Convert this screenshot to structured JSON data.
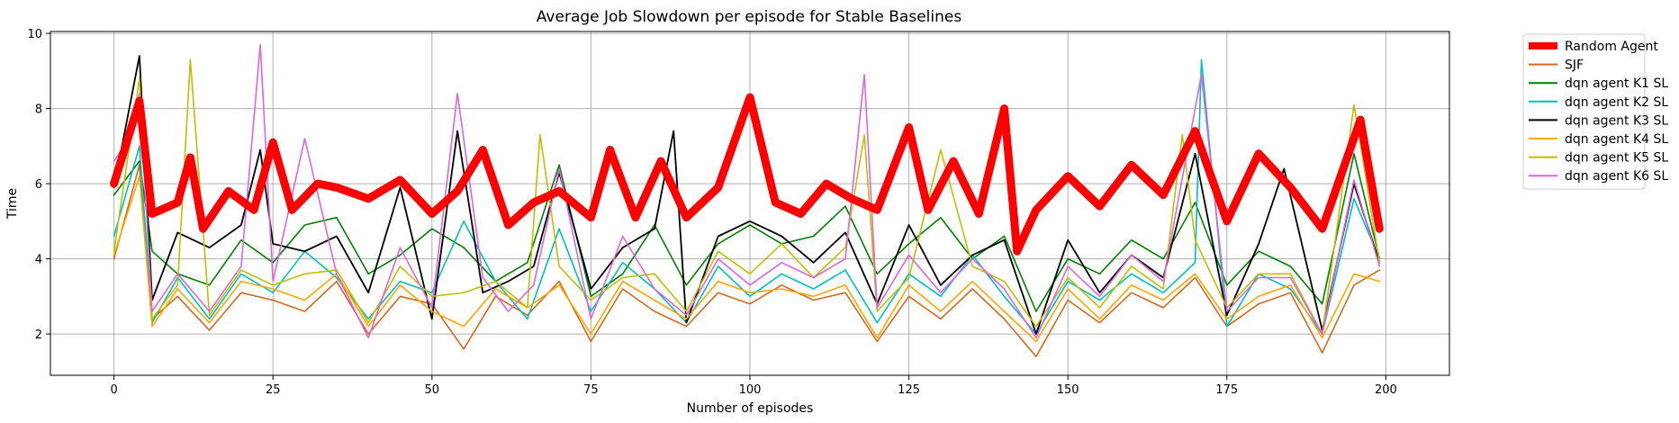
{
  "chart_data": {
    "type": "line",
    "title": "Average Job Slowdown per episode for Stable Baselines",
    "xlabel": "Number of episodes",
    "ylabel": "Time",
    "xlim": [
      -10,
      210
    ],
    "ylim": [
      0.9,
      10.05
    ],
    "xticks": [
      0,
      25,
      50,
      75,
      100,
      125,
      150,
      175,
      200
    ],
    "yticks": [
      2,
      4,
      6,
      8,
      10
    ],
    "grid": true,
    "legend_position": "outside-top-right",
    "series": [
      {
        "name": "Random Agent",
        "color": "#ff0000",
        "width": 9,
        "x": [
          0,
          4,
          6,
          10,
          12,
          14,
          18,
          22,
          25,
          28,
          32,
          35,
          40,
          45,
          50,
          54,
          58,
          62,
          66,
          70,
          75,
          78,
          82,
          86,
          90,
          95,
          100,
          104,
          108,
          112,
          116,
          120,
          125,
          128,
          132,
          136,
          140,
          142,
          145,
          150,
          155,
          160,
          165,
          170,
          175,
          180,
          185,
          190,
          196,
          199
        ],
        "y": [
          6.0,
          8.2,
          5.2,
          5.5,
          6.7,
          4.8,
          5.8,
          5.3,
          7.1,
          5.3,
          6.0,
          5.9,
          5.6,
          6.1,
          5.2,
          5.8,
          6.9,
          4.9,
          5.5,
          5.8,
          5.1,
          6.9,
          5.1,
          6.6,
          5.1,
          5.9,
          8.3,
          5.5,
          5.2,
          6.0,
          5.6,
          5.3,
          7.5,
          5.3,
          6.6,
          5.2,
          8.0,
          4.2,
          5.3,
          6.2,
          5.4,
          6.5,
          5.7,
          7.4,
          5.0,
          6.8,
          5.9,
          4.8,
          7.7,
          4.8
        ]
      },
      {
        "name": "SJF",
        "color": "#d2691e",
        "width": 1.6,
        "x": [
          0,
          4,
          6,
          10,
          15,
          20,
          25,
          30,
          35,
          40,
          45,
          50,
          55,
          60,
          65,
          70,
          75,
          80,
          85,
          90,
          95,
          100,
          105,
          110,
          115,
          120,
          125,
          130,
          135,
          140,
          145,
          150,
          155,
          160,
          165,
          170,
          175,
          180,
          185,
          190,
          195,
          199
        ],
        "y": [
          4.0,
          6.5,
          2.4,
          3.0,
          2.1,
          3.1,
          2.9,
          2.6,
          3.4,
          2.0,
          3.0,
          2.8,
          1.6,
          3.0,
          2.5,
          3.4,
          1.8,
          3.2,
          2.6,
          2.2,
          3.1,
          2.8,
          3.3,
          2.9,
          3.1,
          1.8,
          3.0,
          2.4,
          3.2,
          2.4,
          1.4,
          2.9,
          2.3,
          3.1,
          2.7,
          3.5,
          2.2,
          2.8,
          3.1,
          1.5,
          3.3,
          3.7
        ]
      },
      {
        "name": "dqn agent K1 SL",
        "color": "#008000",
        "width": 1.6,
        "x": [
          0,
          4,
          6,
          10,
          15,
          20,
          25,
          30,
          35,
          40,
          45,
          50,
          55,
          60,
          65,
          70,
          75,
          80,
          85,
          90,
          95,
          100,
          105,
          110,
          115,
          120,
          125,
          130,
          135,
          140,
          145,
          150,
          155,
          160,
          165,
          170,
          175,
          180,
          185,
          190,
          195,
          199
        ],
        "y": [
          5.7,
          6.6,
          4.2,
          3.6,
          3.3,
          4.5,
          3.9,
          4.9,
          5.1,
          3.6,
          4.1,
          4.8,
          4.3,
          3.4,
          3.9,
          6.5,
          3.0,
          3.6,
          4.9,
          3.3,
          4.4,
          4.9,
          4.4,
          4.6,
          5.4,
          3.6,
          4.4,
          5.1,
          4.0,
          4.6,
          2.6,
          4.0,
          3.6,
          4.5,
          4.0,
          5.5,
          3.3,
          4.2,
          3.8,
          2.8,
          6.8,
          4.0
        ]
      },
      {
        "name": "dqn agent K2 SL",
        "color": "#00bfbf",
        "width": 1.6,
        "x": [
          0,
          4,
          6,
          10,
          15,
          20,
          25,
          30,
          35,
          40,
          45,
          50,
          55,
          60,
          65,
          70,
          75,
          80,
          85,
          90,
          95,
          100,
          105,
          110,
          115,
          120,
          125,
          130,
          135,
          140,
          145,
          150,
          155,
          160,
          165,
          170,
          171,
          175,
          180,
          185,
          190,
          195,
          199
        ],
        "y": [
          4.6,
          7.0,
          2.3,
          3.5,
          2.4,
          3.6,
          3.1,
          4.2,
          3.5,
          2.4,
          3.4,
          3.1,
          5.0,
          3.4,
          2.4,
          4.8,
          2.6,
          3.9,
          3.2,
          2.3,
          3.8,
          3.0,
          3.6,
          3.2,
          3.7,
          2.3,
          3.6,
          3.0,
          4.1,
          3.0,
          2.0,
          3.4,
          2.9,
          3.6,
          3.1,
          3.9,
          9.3,
          2.2,
          3.6,
          3.2,
          2.0,
          5.6,
          4.0
        ]
      },
      {
        "name": "dqn agent K3 SL",
        "color": "#000000",
        "width": 1.8,
        "x": [
          0,
          4,
          6,
          10,
          15,
          20,
          23,
          25,
          30,
          35,
          40,
          45,
          50,
          54,
          58,
          62,
          66,
          70,
          75,
          80,
          85,
          88,
          90,
          95,
          100,
          105,
          110,
          115,
          120,
          125,
          130,
          135,
          140,
          145,
          150,
          155,
          160,
          165,
          170,
          175,
          180,
          184,
          190,
          195,
          199
        ],
        "y": [
          5.9,
          9.4,
          2.9,
          4.7,
          4.3,
          4.9,
          6.9,
          4.4,
          4.2,
          4.6,
          3.1,
          5.9,
          2.4,
          7.4,
          3.1,
          3.4,
          3.8,
          6.3,
          3.2,
          4.3,
          4.8,
          7.4,
          2.3,
          4.6,
          5.0,
          4.6,
          3.9,
          4.7,
          2.8,
          4.9,
          3.3,
          4.1,
          4.5,
          2.0,
          4.5,
          3.1,
          4.1,
          3.5,
          6.8,
          2.5,
          4.4,
          6.4,
          2.1,
          6.0,
          3.9
        ]
      },
      {
        "name": "dqn agent K4 SL",
        "color": "#ffa500",
        "width": 1.6,
        "x": [
          0,
          4,
          6,
          10,
          15,
          20,
          25,
          30,
          35,
          40,
          45,
          50,
          55,
          60,
          65,
          70,
          75,
          80,
          85,
          90,
          95,
          100,
          105,
          110,
          115,
          120,
          125,
          130,
          135,
          140,
          145,
          150,
          155,
          160,
          165,
          170,
          175,
          180,
          185,
          190,
          195,
          199
        ],
        "y": [
          4.1,
          6.2,
          2.2,
          3.2,
          2.3,
          3.4,
          3.2,
          2.9,
          3.6,
          2.2,
          3.3,
          2.6,
          2.2,
          3.2,
          2.7,
          3.3,
          2.0,
          3.4,
          2.9,
          2.4,
          3.4,
          3.1,
          3.2,
          3.0,
          3.3,
          1.9,
          3.3,
          2.6,
          3.4,
          2.6,
          1.8,
          3.2,
          2.4,
          3.3,
          2.9,
          3.6,
          2.4,
          3.0,
          3.3,
          1.9,
          3.6,
          3.4
        ]
      },
      {
        "name": "dqn agent K5 SL",
        "color": "#bfbf00",
        "width": 1.6,
        "x": [
          0,
          4,
          6,
          10,
          12,
          15,
          20,
          25,
          30,
          35,
          40,
          45,
          50,
          55,
          60,
          65,
          67,
          70,
          75,
          80,
          85,
          90,
          95,
          100,
          105,
          110,
          115,
          118,
          120,
          125,
          130,
          135,
          140,
          145,
          150,
          155,
          160,
          165,
          168,
          170,
          175,
          180,
          185,
          190,
          195,
          199
        ],
        "y": [
          4.2,
          8.8,
          2.4,
          3.3,
          9.3,
          2.5,
          3.7,
          3.3,
          3.6,
          3.7,
          2.3,
          3.8,
          3.0,
          3.1,
          3.4,
          2.7,
          7.3,
          3.8,
          2.9,
          3.5,
          3.6,
          2.6,
          4.2,
          3.6,
          4.4,
          3.5,
          4.3,
          7.3,
          2.6,
          3.5,
          6.9,
          3.8,
          3.4,
          2.2,
          3.5,
          2.7,
          3.8,
          3.2,
          7.3,
          4.5,
          2.7,
          3.6,
          3.6,
          2.0,
          8.1,
          3.9
        ]
      },
      {
        "name": "dqn agent K6 SL",
        "color": "#dd66dd",
        "width": 1.6,
        "x": [
          0,
          2,
          4,
          6,
          10,
          15,
          20,
          23,
          25,
          30,
          35,
          40,
          45,
          50,
          54,
          58,
          62,
          66,
          70,
          75,
          80,
          85,
          90,
          95,
          100,
          105,
          110,
          115,
          118,
          120,
          125,
          130,
          135,
          140,
          145,
          150,
          155,
          160,
          165,
          171,
          175,
          180,
          185,
          190,
          195,
          199
        ],
        "y": [
          6.6,
          7.1,
          8.4,
          2.6,
          3.6,
          2.6,
          3.8,
          9.7,
          3.4,
          7.2,
          3.6,
          1.9,
          4.3,
          2.7,
          8.4,
          3.5,
          2.6,
          3.3,
          6.4,
          2.4,
          4.6,
          3.2,
          2.5,
          4.0,
          3.3,
          3.9,
          3.5,
          4.0,
          8.9,
          2.7,
          4.1,
          3.1,
          4.0,
          3.2,
          1.9,
          3.8,
          3.0,
          4.1,
          3.4,
          8.9,
          2.6,
          3.5,
          3.5,
          2.0,
          6.1,
          3.8
        ]
      }
    ]
  }
}
